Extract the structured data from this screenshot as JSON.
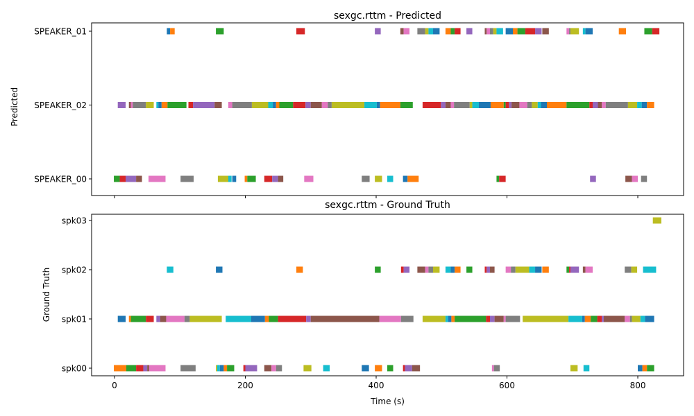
{
  "colors": [
    "#1f77b4",
    "#ff7f0e",
    "#2ca02c",
    "#d62728",
    "#9467bd",
    "#8c564b",
    "#e377c2",
    "#7f7f7f",
    "#bcbd22",
    "#17becf"
  ],
  "chart_data": [
    {
      "type": "timeline",
      "title": "sexgc.rttm - Predicted",
      "xlabel": "",
      "ylabel": "Predicted",
      "xlim": [
        -35,
        870
      ],
      "xticks": [
        0,
        200,
        400,
        600,
        800
      ],
      "tick_labels_visible": false,
      "categories": [
        "SPEAKER_00",
        "SPEAKER_02",
        "SPEAKER_01"
      ],
      "segments": {
        "SPEAKER_01": [
          [
            80,
            85
          ],
          [
            85,
            92
          ],
          [
            155,
            167
          ],
          [
            278,
            291
          ],
          [
            398,
            407
          ],
          [
            437,
            442
          ],
          [
            442,
            451
          ],
          [
            463,
            475
          ],
          [
            475,
            480
          ],
          [
            480,
            487
          ],
          [
            487,
            497
          ],
          [
            506,
            514
          ],
          [
            514,
            520
          ],
          [
            520,
            529
          ],
          [
            538,
            547
          ],
          [
            566,
            569
          ],
          [
            569,
            574
          ],
          [
            574,
            579
          ],
          [
            579,
            584
          ],
          [
            584,
            594
          ],
          [
            598,
            609
          ],
          [
            609,
            616
          ],
          [
            616,
            628
          ],
          [
            628,
            643
          ],
          [
            643,
            653
          ],
          [
            654,
            664
          ],
          [
            691,
            695
          ],
          [
            695,
            697
          ],
          [
            697,
            710
          ],
          [
            716,
            720
          ],
          [
            720,
            731
          ],
          [
            771,
            782
          ],
          [
            810,
            822
          ],
          [
            822,
            833
          ]
        ],
        "SPEAKER_02": [
          [
            5,
            17
          ],
          [
            22,
            25
          ],
          [
            25,
            28
          ],
          [
            28,
            48
          ],
          [
            48,
            60
          ],
          [
            64,
            67
          ],
          [
            67,
            72
          ],
          [
            72,
            81
          ],
          [
            81,
            110
          ],
          [
            113,
            120
          ],
          [
            120,
            153
          ],
          [
            153,
            164
          ],
          [
            174,
            180
          ],
          [
            180,
            210
          ],
          [
            210,
            235
          ],
          [
            235,
            242
          ],
          [
            242,
            247
          ],
          [
            247,
            252
          ],
          [
            252,
            273
          ],
          [
            273,
            292
          ],
          [
            292,
            300
          ],
          [
            300,
            317
          ],
          [
            317,
            326
          ],
          [
            326,
            332
          ],
          [
            332,
            382
          ],
          [
            382,
            401
          ],
          [
            401,
            406
          ],
          [
            406,
            437
          ],
          [
            437,
            456
          ],
          [
            471,
            499
          ],
          [
            499,
            506
          ],
          [
            506,
            514
          ],
          [
            514,
            519
          ],
          [
            519,
            543
          ],
          [
            543,
            547
          ],
          [
            547,
            557
          ],
          [
            557,
            575
          ],
          [
            575,
            595
          ],
          [
            595,
            598
          ],
          [
            598,
            603
          ],
          [
            603,
            607
          ],
          [
            607,
            619
          ],
          [
            619,
            631
          ],
          [
            631,
            638
          ],
          [
            638,
            647
          ],
          [
            647,
            652
          ],
          [
            652,
            661
          ],
          [
            661,
            691
          ],
          [
            691,
            726
          ],
          [
            726,
            731
          ],
          [
            731,
            739
          ],
          [
            739,
            745
          ],
          [
            745,
            751
          ],
          [
            751,
            785
          ],
          [
            785,
            799
          ],
          [
            799,
            806
          ],
          [
            806,
            814
          ],
          [
            814,
            825
          ]
        ],
        "SPEAKER_00": [
          [
            -1,
            8
          ],
          [
            8,
            17
          ],
          [
            17,
            33
          ],
          [
            33,
            42
          ],
          [
            52,
            78
          ],
          [
            101,
            121
          ],
          [
            158,
            174
          ],
          [
            174,
            179
          ],
          [
            180,
            186
          ],
          [
            199,
            203
          ],
          [
            203,
            216
          ],
          [
            229,
            241
          ],
          [
            241,
            250
          ],
          [
            250,
            258
          ],
          [
            290,
            304
          ],
          [
            378,
            390
          ],
          [
            398,
            409
          ],
          [
            417,
            426
          ],
          [
            441,
            448
          ],
          [
            448,
            465
          ],
          [
            584,
            588
          ],
          [
            588,
            598
          ],
          [
            727,
            736
          ],
          [
            781,
            791
          ],
          [
            791,
            800
          ],
          [
            805,
            814
          ]
        ]
      }
    },
    {
      "type": "timeline",
      "title": "sexgc.rttm - Ground Truth",
      "xlabel": "Time (s)",
      "ylabel": "Ground Truth",
      "xlim": [
        -35,
        870
      ],
      "xticks": [
        0,
        200,
        400,
        600,
        800
      ],
      "tick_labels_visible": true,
      "categories": [
        "spk00",
        "spk01",
        "spk02",
        "spk03"
      ],
      "segments": {
        "spk03": [
          [
            823,
            836
          ]
        ],
        "spk02": [
          [
            80,
            90
          ],
          [
            155,
            165
          ],
          [
            278,
            288
          ],
          [
            398,
            407
          ],
          [
            438,
            442
          ],
          [
            442,
            451
          ],
          [
            463,
            475
          ],
          [
            475,
            480
          ],
          [
            480,
            487
          ],
          [
            487,
            497
          ],
          [
            506,
            514
          ],
          [
            514,
            520
          ],
          [
            520,
            529
          ],
          [
            538,
            547
          ],
          [
            566,
            569
          ],
          [
            569,
            574
          ],
          [
            574,
            581
          ],
          [
            598,
            606
          ],
          [
            606,
            613
          ],
          [
            613,
            634
          ],
          [
            634,
            643
          ],
          [
            643,
            653
          ],
          [
            654,
            664
          ],
          [
            691,
            695
          ],
          [
            695,
            697
          ],
          [
            697,
            710
          ],
          [
            716,
            720
          ],
          [
            720,
            731
          ],
          [
            780,
            790
          ],
          [
            790,
            799
          ],
          [
            808,
            828
          ]
        ],
        "spk01": [
          [
            5,
            17
          ],
          [
            22,
            25
          ],
          [
            25,
            48
          ],
          [
            48,
            60
          ],
          [
            64,
            70
          ],
          [
            70,
            79
          ],
          [
            79,
            107
          ],
          [
            107,
            115
          ],
          [
            115,
            164
          ],
          [
            170,
            209
          ],
          [
            209,
            230
          ],
          [
            230,
            236
          ],
          [
            236,
            250
          ],
          [
            250,
            293
          ],
          [
            293,
            300
          ],
          [
            300,
            405
          ],
          [
            405,
            438
          ],
          [
            438,
            457
          ],
          [
            471,
            506
          ],
          [
            506,
            510
          ],
          [
            510,
            515
          ],
          [
            515,
            520
          ],
          [
            520,
            568
          ],
          [
            568,
            574
          ],
          [
            574,
            581
          ],
          [
            581,
            595
          ],
          [
            595,
            598
          ],
          [
            598,
            620
          ],
          [
            624,
            694
          ],
          [
            694,
            715
          ],
          [
            715,
            719
          ],
          [
            719,
            728
          ],
          [
            728,
            738
          ],
          [
            738,
            745
          ],
          [
            745,
            748
          ],
          [
            748,
            780
          ],
          [
            780,
            788
          ],
          [
            788,
            791
          ],
          [
            791,
            804
          ],
          [
            804,
            811
          ],
          [
            811,
            825
          ]
        ],
        "spk00": [
          [
            -1,
            18
          ],
          [
            18,
            33
          ],
          [
            33,
            44
          ],
          [
            44,
            50
          ],
          [
            50,
            53
          ],
          [
            53,
            78
          ],
          [
            101,
            124
          ],
          [
            155,
            157
          ],
          [
            157,
            161
          ],
          [
            161,
            167
          ],
          [
            167,
            172
          ],
          [
            172,
            183
          ],
          [
            197,
            200
          ],
          [
            200,
            218
          ],
          [
            229,
            240
          ],
          [
            240,
            247
          ],
          [
            247,
            256
          ],
          [
            289,
            301
          ],
          [
            319,
            329
          ],
          [
            378,
            389
          ],
          [
            398,
            409
          ],
          [
            417,
            426
          ],
          [
            441,
            444
          ],
          [
            444,
            455
          ],
          [
            455,
            467
          ],
          [
            577,
            580
          ],
          [
            580,
            589
          ],
          [
            697,
            708
          ],
          [
            717,
            726
          ],
          [
            800,
            807
          ],
          [
            807,
            814
          ],
          [
            814,
            825
          ]
        ]
      }
    }
  ]
}
